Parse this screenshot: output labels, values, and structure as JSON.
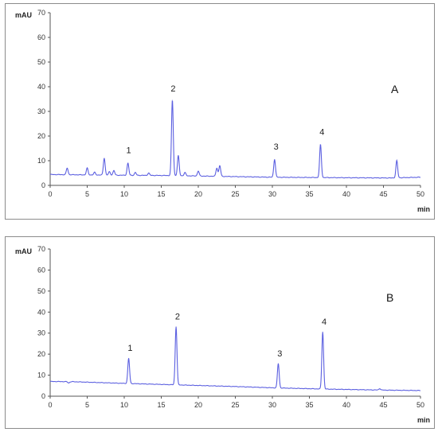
{
  "chart_data": [
    {
      "type": "line",
      "panel_label": "A",
      "ylabel": "mAU",
      "xlabel": "min",
      "xlim": [
        0,
        50
      ],
      "ylim": [
        0,
        70
      ],
      "xticks": [
        0,
        5,
        10,
        15,
        20,
        25,
        30,
        35,
        40,
        45,
        50
      ],
      "yticks": [
        0,
        10,
        20,
        30,
        40,
        50,
        60,
        70
      ],
      "grid": false,
      "baseline": [
        [
          0,
          4.4
        ],
        [
          10,
          4.1
        ],
        [
          16,
          4.0
        ],
        [
          20,
          3.8
        ],
        [
          30,
          3.3
        ],
        [
          40,
          3.1
        ],
        [
          46,
          3.0
        ],
        [
          50,
          3.3
        ]
      ],
      "peaks": [
        {
          "x": 2.3,
          "y": 7.0
        },
        {
          "x": 5.0,
          "y": 7.0
        },
        {
          "x": 6.0,
          "y": 5.3
        },
        {
          "x": 7.3,
          "y": 11.0
        },
        {
          "x": 8.0,
          "y": 5.5
        },
        {
          "x": 8.6,
          "y": 6.0
        },
        {
          "x": 10.5,
          "y": 9.0
        },
        {
          "x": 11.5,
          "y": 5.2
        },
        {
          "x": 13.3,
          "y": 5.0
        },
        {
          "x": 16.5,
          "y": 34.5
        },
        {
          "x": 17.3,
          "y": 12.0
        },
        {
          "x": 18.2,
          "y": 5.2
        },
        {
          "x": 20.0,
          "y": 5.8
        },
        {
          "x": 22.5,
          "y": 7.0
        },
        {
          "x": 22.9,
          "y": 8.0
        },
        {
          "x": 30.3,
          "y": 10.5
        },
        {
          "x": 36.5,
          "y": 16.5
        },
        {
          "x": 46.8,
          "y": 10.0
        }
      ],
      "annotations": [
        {
          "text": "1",
          "x": 10.6,
          "y": 13.0
        },
        {
          "text": "2",
          "x": 16.6,
          "y": 38.0
        },
        {
          "text": "3",
          "x": 30.5,
          "y": 14.5
        },
        {
          "text": "4",
          "x": 36.7,
          "y": 20.5
        }
      ]
    },
    {
      "type": "line",
      "panel_label": "B",
      "ylabel": "mAU",
      "xlabel": "min",
      "xlim": [
        0,
        50
      ],
      "ylim": [
        0,
        70
      ],
      "xticks": [
        0,
        5,
        10,
        15,
        20,
        25,
        30,
        35,
        40,
        45,
        50
      ],
      "yticks": [
        0,
        10,
        20,
        30,
        40,
        50,
        60,
        70
      ],
      "grid": false,
      "baseline": [
        [
          0,
          7.0
        ],
        [
          3,
          6.9
        ],
        [
          10,
          6.1
        ],
        [
          17,
          5.4
        ],
        [
          25,
          4.6
        ],
        [
          30,
          4.0
        ],
        [
          37,
          3.4
        ],
        [
          45,
          2.9
        ],
        [
          50,
          2.7
        ]
      ],
      "peaks": [
        {
          "x": 2.5,
          "y": 6.3
        },
        {
          "x": 10.6,
          "y": 18.0
        },
        {
          "x": 17.0,
          "y": 33.0
        },
        {
          "x": 30.8,
          "y": 15.5
        },
        {
          "x": 36.8,
          "y": 30.5
        },
        {
          "x": 44.5,
          "y": 3.6
        }
      ],
      "annotations": [
        {
          "text": "1",
          "x": 10.8,
          "y": 21.5
        },
        {
          "text": "2",
          "x": 17.2,
          "y": 36.5
        },
        {
          "text": "3",
          "x": 31.0,
          "y": 19.0
        },
        {
          "text": "4",
          "x": 37.0,
          "y": 34.0
        }
      ]
    }
  ],
  "colors": {
    "trace": "#5b5fe0",
    "axis": "#555555",
    "frame": "#8c8c8c"
  }
}
